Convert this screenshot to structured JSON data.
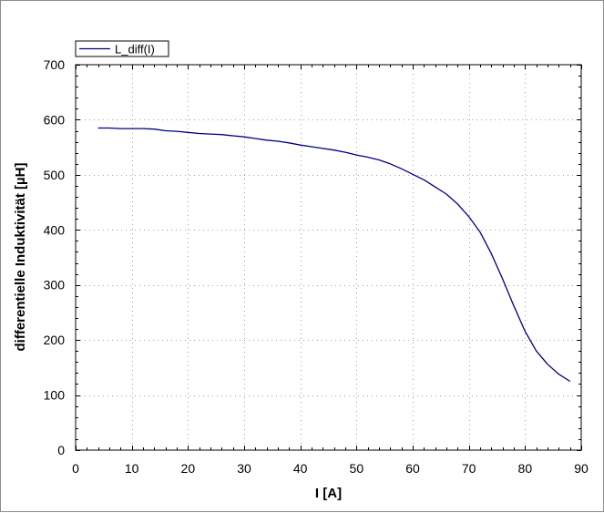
{
  "chart_data": {
    "type": "line",
    "title": "",
    "xlabel": "I [A]",
    "ylabel": "differentielle Induktivität [µH]",
    "xlim": [
      0,
      90
    ],
    "ylim": [
      0,
      700
    ],
    "xticks": [
      0,
      10,
      20,
      30,
      40,
      50,
      60,
      70,
      80,
      90
    ],
    "yticks": [
      0,
      100,
      200,
      300,
      400,
      500,
      600,
      700
    ],
    "xtick_labels": [
      "0",
      "10",
      "20",
      "30",
      "40",
      "50",
      "60",
      "70",
      "80",
      "90"
    ],
    "ytick_labels": [
      "0",
      "100",
      "200",
      "300",
      "400",
      "500",
      "600",
      "700"
    ],
    "grid": true,
    "legend_position": "top-left",
    "series": [
      {
        "name": "L_diff(I)",
        "color": "#000080",
        "x": [
          4,
          6,
          8,
          10,
          12,
          14,
          16,
          18,
          20,
          22,
          24,
          26,
          28,
          30,
          32,
          34,
          36,
          38,
          40,
          42,
          44,
          46,
          48,
          50,
          52,
          54,
          56,
          58,
          60,
          62,
          64,
          66,
          68,
          70,
          72,
          74,
          76,
          78,
          80,
          82,
          84,
          86,
          88
        ],
        "y": [
          585,
          585,
          584,
          584,
          584,
          583,
          580,
          579,
          577,
          575,
          574,
          573,
          571,
          569,
          566,
          563,
          561,
          558,
          554,
          551,
          548,
          545,
          541,
          536,
          532,
          527,
          520,
          511,
          501,
          491,
          478,
          465,
          447,
          424,
          396,
          357,
          311,
          262,
          216,
          180,
          156,
          138,
          125
        ]
      }
    ]
  }
}
